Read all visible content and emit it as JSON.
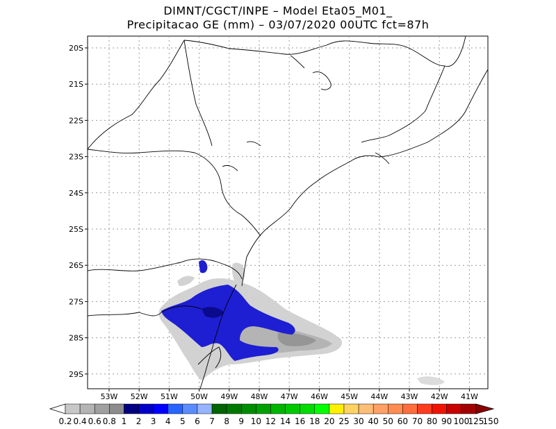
{
  "title_line1": "DIMNT/CGCT/INPE –  Model Eta05_M01_",
  "title_line2": "Precipitacao GE (mm) – 03/07/2020 00UTC fct=87h",
  "lat_labels": [
    "20S",
    "21S",
    "22S",
    "23S",
    "24S",
    "25S",
    "26S",
    "27S",
    "28S",
    "29S"
  ],
  "lon_labels": [
    "53W",
    "52W",
    "51W",
    "50W",
    "49W",
    "48W",
    "47W",
    "46W",
    "45W",
    "44W",
    "43W",
    "42W",
    "41W"
  ],
  "colorbar": {
    "labels": [
      "0.2",
      "0.4",
      "0.6",
      "0.8",
      "1",
      "2",
      "3",
      "4",
      "5",
      "6",
      "7",
      "8",
      "9",
      "10",
      "12",
      "14",
      "16",
      "18",
      "20",
      "25",
      "30",
      "40",
      "50",
      "60",
      "70",
      "80",
      "90",
      "100",
      "125",
      "150"
    ],
    "colors": [
      "#c8c8c8",
      "#b4b4b4",
      "#a0a0a0",
      "#8c8c8c",
      "#000080",
      "#0000c8",
      "#0000ff",
      "#2864ff",
      "#5a8cff",
      "#96b4ff",
      "#006400",
      "#007800",
      "#008c00",
      "#00a000",
      "#00b400",
      "#00c800",
      "#00dc00",
      "#00ff00",
      "#fff000",
      "#ffd264",
      "#ffbe78",
      "#ffa064",
      "#ff8c50",
      "#ff6e3c",
      "#ff3c1e",
      "#f01400",
      "#c80000",
      "#a00000",
      "#8c0000"
    ]
  },
  "colors": {
    "blue_core": "#1428c8",
    "gray_1": "#c8c8c8",
    "gray_2": "#a8a8a8",
    "gray_3": "#8c8c8c"
  }
}
